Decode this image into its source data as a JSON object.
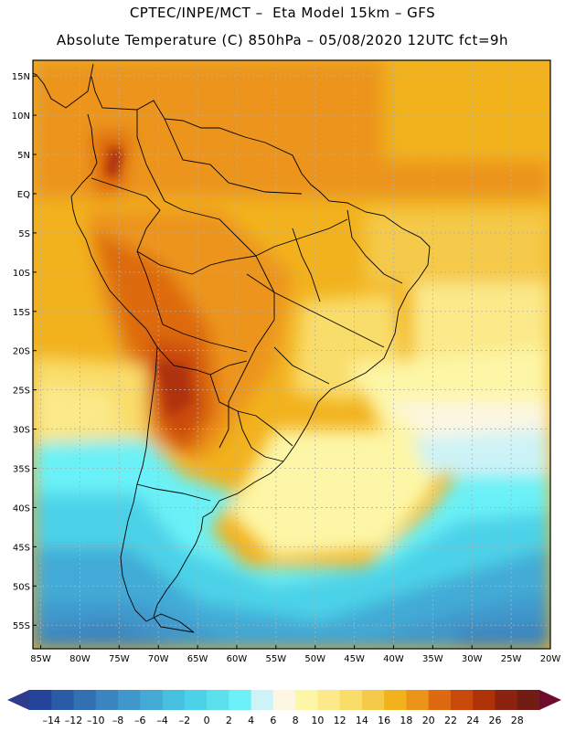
{
  "title": {
    "line1": "CPTEC/INPE/MCT –  Eta Model 15km – GFS",
    "line2": "Absolute Temperature (C) 850hPa – 05/08/2020 12UTC fct=9h"
  },
  "map": {
    "lon_range": [
      -86,
      -20
    ],
    "lat_range": [
      -58,
      17
    ],
    "lat_ticks": [
      {
        "value": 15,
        "label": "15N"
      },
      {
        "value": 10,
        "label": "10N"
      },
      {
        "value": 5,
        "label": "5N"
      },
      {
        "value": 0,
        "label": "EQ"
      },
      {
        "value": -5,
        "label": "5S"
      },
      {
        "value": -10,
        "label": "10S"
      },
      {
        "value": -15,
        "label": "15S"
      },
      {
        "value": -20,
        "label": "20S"
      },
      {
        "value": -25,
        "label": "25S"
      },
      {
        "value": -30,
        "label": "30S"
      },
      {
        "value": -35,
        "label": "35S"
      },
      {
        "value": -40,
        "label": "40S"
      },
      {
        "value": -45,
        "label": "45S"
      },
      {
        "value": -50,
        "label": "50S"
      },
      {
        "value": -55,
        "label": "55S"
      }
    ],
    "lon_ticks": [
      {
        "value": -85,
        "label": "85W"
      },
      {
        "value": -80,
        "label": "80W"
      },
      {
        "value": -75,
        "label": "75W"
      },
      {
        "value": -70,
        "label": "70W"
      },
      {
        "value": -65,
        "label": "65W"
      },
      {
        "value": -60,
        "label": "60W"
      },
      {
        "value": -55,
        "label": "55W"
      },
      {
        "value": -50,
        "label": "50W"
      },
      {
        "value": -45,
        "label": "45W"
      },
      {
        "value": -40,
        "label": "40W"
      },
      {
        "value": -35,
        "label": "35W"
      },
      {
        "value": -30,
        "label": "30W"
      },
      {
        "value": -25,
        "label": "25W"
      },
      {
        "value": -20,
        "label": "20W"
      }
    ]
  },
  "colorbar": {
    "labels": [
      "-14",
      "-12",
      "-10",
      "-8",
      "-6",
      "-4",
      "-2",
      "0",
      "2",
      "4",
      "6",
      "8",
      "10",
      "12",
      "14",
      "16",
      "18",
      "20",
      "22",
      "24",
      "26",
      "28"
    ],
    "colors": [
      "#23449a",
      "#2a5ba6",
      "#3170b3",
      "#3a84c0",
      "#3f97cb",
      "#43aad6",
      "#47bfdf",
      "#4cd2e8",
      "#5ce0ee",
      "#6bf1f7",
      "#cdf3f7",
      "#fcf6e2",
      "#fdf6a6",
      "#fbe98a",
      "#f9dd6a",
      "#f5c94a",
      "#f2b21e",
      "#ec941a",
      "#dd6a10",
      "#c9490c",
      "#ae3208",
      "#8c2310",
      "#731c14"
    ],
    "left_arrow_color": "#2f3c8c",
    "right_arrow_color": "#6e0c2c"
  }
}
